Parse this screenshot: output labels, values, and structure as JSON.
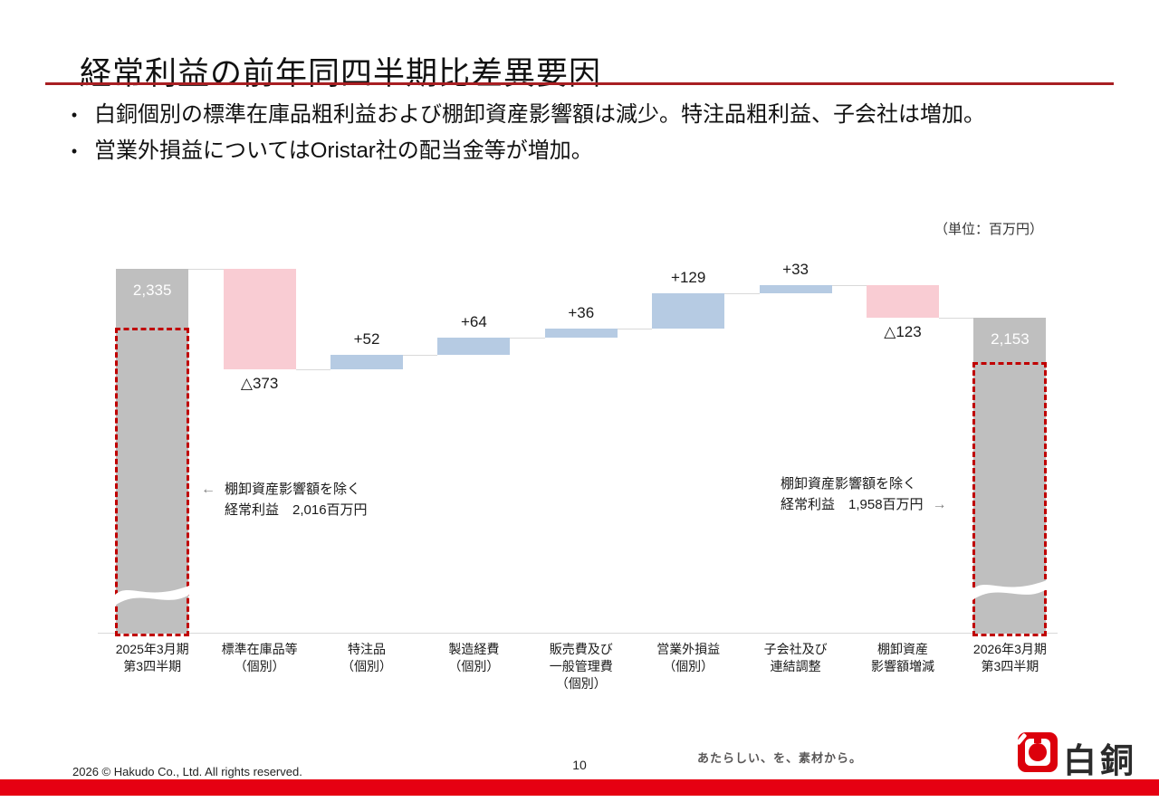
{
  "slide": {
    "title": "経常利益の前年同四半期比差異要因",
    "bullet_marker": "•",
    "bullets": [
      "白銅個別の標準在庫品粗利益および棚卸資産影響額は減少。特注品粗利益、子会社は増加。",
      "営業外損益についてはOristar社の配当金等が増加。"
    ]
  },
  "chart_data": {
    "type": "bar",
    "subtype": "waterfall",
    "unit": "百万円",
    "unit_label": "（単位：百万円）",
    "axis_break_on_total_bars": true,
    "categories": [
      "2025年3月期 第3四半期",
      "標準在庫品等（個別）",
      "特注品（個別）",
      "製造経費（個別）",
      "販売費及び一般管理費（個別）",
      "営業外損益（個別）",
      "子会社及び連結調整",
      "棚卸資産影響額増減",
      "2026年3月期 第3四半期"
    ],
    "bars": [
      {
        "kind": "total",
        "value": 2335,
        "display": "2,335",
        "label_lines": [
          "2025年3月期",
          "第3四半期"
        ]
      },
      {
        "kind": "delta",
        "value": -373,
        "display": "△373",
        "label_lines": [
          "標準在庫品等",
          "（個別）"
        ]
      },
      {
        "kind": "delta",
        "value": 52,
        "display": "+52",
        "label_lines": [
          "特注品",
          "（個別）"
        ]
      },
      {
        "kind": "delta",
        "value": 64,
        "display": "+64",
        "label_lines": [
          "製造経費",
          "（個別）"
        ]
      },
      {
        "kind": "delta",
        "value": 36,
        "display": "+36",
        "label_lines": [
          "販売費及び",
          "一般管理費",
          "（個別）"
        ]
      },
      {
        "kind": "delta",
        "value": 129,
        "display": "+129",
        "label_lines": [
          "営業外損益",
          "（個別）"
        ]
      },
      {
        "kind": "delta",
        "value": 33,
        "display": "+33",
        "label_lines": [
          "子会社及び",
          "連結調整"
        ]
      },
      {
        "kind": "delta",
        "value": -123,
        "display": "△123",
        "label_lines": [
          "棚卸資産",
          "影響額増減"
        ]
      },
      {
        "kind": "total",
        "value": 2153,
        "display": "2,153",
        "label_lines": [
          "2026年3月期",
          "第3四半期"
        ]
      }
    ],
    "annotations": [
      {
        "arrow": "←",
        "lines": [
          "棚卸資産影響額を除く",
          "経常利益　2,016百万円"
        ]
      },
      {
        "arrow": "→",
        "lines": [
          "棚卸資産影響額を除く",
          "経常利益　1,958百万円"
        ]
      }
    ],
    "colors": {
      "total_bar": "#bfbfbf",
      "increase_bar": "#b6cbe3",
      "decrease_bar": "#f9ccd3",
      "dashed_box": "#c00000",
      "connector": "#d9d9d9"
    }
  },
  "footer": {
    "copyright": "2026 © Hakudo Co., Ltd. All rights reserved.",
    "page_number": "10",
    "logo_tagline": "あたらしい、を、素材から。",
    "logo_text": "白銅"
  },
  "theme": {
    "title_rule_red": "#a81e22",
    "bottom_bar_red": "#e60012",
    "logo_red": "#dc000c"
  }
}
